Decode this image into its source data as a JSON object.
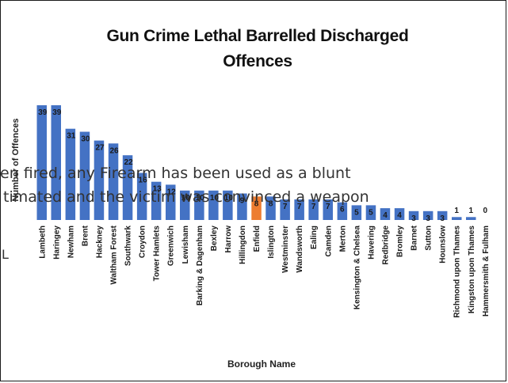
{
  "chart_data": {
    "type": "bar",
    "title": "Gun Crime Lethal Barrelled Discharged\nOffences",
    "xlabel": "Borough Name",
    "ylabel": "Number of Offences",
    "ylim": [
      0,
      39
    ],
    "categories": [
      "Lambeth",
      "Haringey",
      "Newham",
      "Brent",
      "Hackney",
      "Waltham Forest",
      "Southwark",
      "Croydon",
      "Tower Hamlets",
      "Greenwich",
      "Lewisham",
      "Barking & Dagenham",
      "Bexley",
      "Harrow",
      "Hillingdon",
      "Enfield",
      "Islington",
      "Westminster",
      "Wandsworth",
      "Ealing",
      "Camden",
      "Merton",
      "Kensington & Chelsea",
      "Havering",
      "Redbridge",
      "Bromley",
      "Barnet",
      "Sutton",
      "Hounslow",
      "Richmond upon Thames",
      "Kingston upon Thames",
      "Hammersmith & Fulham"
    ],
    "values": [
      39,
      39,
      31,
      30,
      27,
      26,
      22,
      16,
      13,
      12,
      10,
      10,
      10,
      10,
      9,
      8,
      8,
      7,
      7,
      7,
      7,
      6,
      5,
      5,
      4,
      4,
      3,
      3,
      3,
      1,
      1,
      0
    ],
    "displayed_labels": [
      "39",
      "39",
      "31",
      "30",
      "27",
      "26",
      "22",
      "16",
      "13",
      "12",
      "10",
      "10",
      "10",
      "10",
      "9",
      "8",
      "8",
      "7",
      "7",
      "7",
      "7",
      "6",
      "5",
      "5",
      "4",
      "4",
      "3",
      "3",
      "3",
      "1",
      "1",
      "0"
    ],
    "grid": false,
    "legend": "none",
    "colors": {
      "default": "#4472C4",
      "highlight": "#ED7D31"
    },
    "highlight_category": "Enfield"
  },
  "overlay": {
    "line1": "en fired, any Firearm has been used as a blunt",
    "line2": "timated and the victim was convinced a weapon",
    "cut_char": "L"
  }
}
